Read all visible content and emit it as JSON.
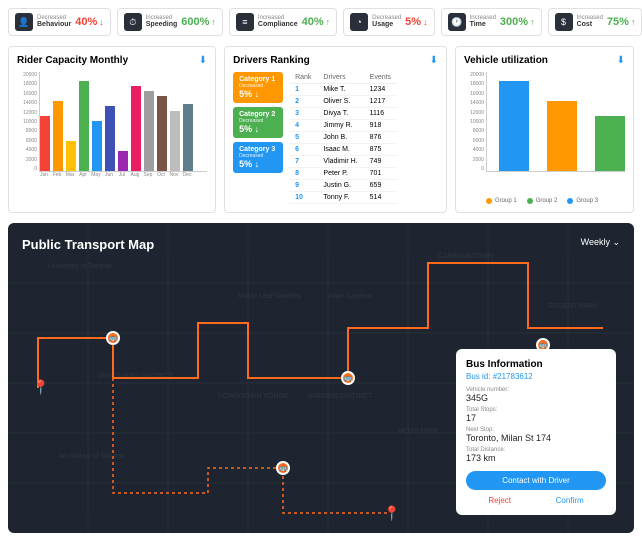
{
  "kpis": [
    {
      "icon": "👤",
      "label": "Behaviour",
      "trend": "Decreased",
      "value": "40%",
      "dir": "↓",
      "color": "#f44336"
    },
    {
      "icon": "⏱",
      "label": "Speeding",
      "trend": "Increased",
      "value": "600%",
      "dir": "↑",
      "color": "#4caf50"
    },
    {
      "icon": "≡",
      "label": "Compliance",
      "trend": "Increased",
      "value": "40%",
      "dir": "↑",
      "color": "#4caf50"
    },
    {
      "icon": "◔",
      "label": "Usage",
      "trend": "Decreased",
      "value": "5%",
      "dir": "↓",
      "color": "#f44336"
    },
    {
      "icon": "🕐",
      "label": "Time",
      "trend": "Increased",
      "value": "300%",
      "dir": "↑",
      "color": "#4caf50"
    },
    {
      "icon": "$",
      "label": "Cost",
      "trend": "Increased",
      "value": "75%",
      "dir": "↑",
      "color": "#4caf50"
    }
  ],
  "rider": {
    "title": "Rider Capacity Monthly",
    "ylim": 20000,
    "yticks": [
      "20000",
      "18000",
      "16000",
      "14000",
      "12000",
      "10000",
      "8000",
      "6000",
      "4000",
      "2000",
      "0"
    ],
    "months": [
      "Jan",
      "Feb",
      "Mar",
      "Apr",
      "May",
      "Jun",
      "Jul",
      "Aug",
      "Sep",
      "Oct",
      "Nov",
      "Dec"
    ],
    "values": [
      11000,
      14000,
      6000,
      18000,
      10000,
      13000,
      4000,
      17000,
      16000,
      15000,
      12000,
      13500
    ],
    "colors": [
      "#f44336",
      "#ff9800",
      "#ffc107",
      "#4caf50",
      "#2196f3",
      "#3f51b5",
      "#9c27b0",
      "#e91e63",
      "#9e9e9e",
      "#795548",
      "#bdbdbd",
      "#607d8b"
    ]
  },
  "ranking": {
    "title": "Drivers Ranking",
    "categories": [
      {
        "name": "Category 1",
        "sub": "Decreased",
        "val": "5% ↓",
        "bg": "#ff9800"
      },
      {
        "name": "Category 2",
        "sub": "Decreased",
        "val": "5% ↓",
        "bg": "#4caf50"
      },
      {
        "name": "Category 3",
        "sub": "Decreased",
        "val": "5% ↓",
        "bg": "#2196f3"
      }
    ],
    "cols": [
      "Rank",
      "Drivers",
      "Events"
    ],
    "rows": [
      [
        "1",
        "Mike T.",
        "1234"
      ],
      [
        "2",
        "Oliver S.",
        "1217"
      ],
      [
        "3",
        "Divya T.",
        "1116"
      ],
      [
        "4",
        "Jimmy R.",
        "918"
      ],
      [
        "5",
        "John B.",
        "876"
      ],
      [
        "6",
        "Isaac M.",
        "875"
      ],
      [
        "7",
        "Vladimir H.",
        "749"
      ],
      [
        "8",
        "Peter P.",
        "701"
      ],
      [
        "9",
        "Justin G.",
        "659"
      ],
      [
        "10",
        "Tonny F.",
        "514"
      ]
    ]
  },
  "util": {
    "title": "Vehicle utilization",
    "ylim": 20000,
    "yticks": [
      "20000",
      "18000",
      "16000",
      "14000",
      "12000",
      "10000",
      "8000",
      "6000",
      "4000",
      "2000",
      "0"
    ],
    "groups": [
      {
        "label": "Group 1",
        "value": 18000,
        "color": "#2196f3"
      },
      {
        "label": "Group 2",
        "value": 14000,
        "color": "#ff9800"
      },
      {
        "label": "Group 3",
        "value": 11000,
        "color": "#4caf50"
      }
    ],
    "legend_colors": [
      "#ff9800",
      "#4caf50",
      "#2196f3"
    ]
  },
  "map": {
    "title": "Public Transport Map",
    "selector": "Weekly ⌄",
    "labels": [
      "University of Toronto",
      "Maple Leaf Gardens",
      "Allan Gardens",
      "CABBAGETOWN",
      "REGENT PARK",
      "DOWNTOWN YONGE",
      "GARDEN DISTRICT",
      "MOSS PARK",
      "The Grand Hotel & Suites",
      "Ryerson University",
      "DISCOVERY DISTRICT",
      "Art Gallery of Ontario",
      "Mclaren"
    ],
    "info": {
      "title": "Bus Information",
      "id_label": "Bus id:",
      "id": "#21783612",
      "vn_label": "Vehicle number:",
      "vn": "345G",
      "stops_label": "Total Stops:",
      "stops": "17",
      "next_label": "Next Stop:",
      "next": "Toronto, Milan St 174",
      "dist_label": "Total Distance:",
      "dist": "173 km",
      "contact": "Contact with Driver",
      "reject": "Reject",
      "confirm": "Confirm"
    }
  }
}
